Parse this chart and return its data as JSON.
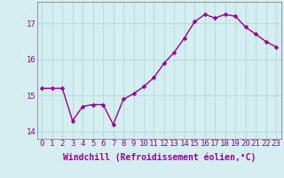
{
  "x": [
    0,
    1,
    2,
    3,
    4,
    5,
    6,
    7,
    8,
    9,
    10,
    11,
    12,
    13,
    14,
    15,
    16,
    17,
    18,
    19,
    20,
    21,
    22,
    23
  ],
  "y": [
    15.2,
    15.2,
    15.2,
    14.3,
    14.7,
    14.75,
    14.75,
    14.2,
    14.9,
    15.05,
    15.25,
    15.5,
    15.9,
    16.2,
    16.6,
    17.05,
    17.25,
    17.15,
    17.25,
    17.2,
    16.9,
    16.7,
    16.5,
    16.35
  ],
  "line_color": "#990099",
  "marker": "D",
  "marker_size": 2.5,
  "linewidth": 1.0,
  "xlabel": "Windchill (Refroidissement éolien,°C)",
  "xlabel_fontsize": 7,
  "ylim": [
    13.8,
    17.6
  ],
  "xlim": [
    -0.5,
    23.5
  ],
  "yticks": [
    14,
    15,
    16,
    17
  ],
  "xtick_labels": [
    "0",
    "1",
    "2",
    "3",
    "4",
    "5",
    "6",
    "7",
    "8",
    "9",
    "10",
    "11",
    "12",
    "13",
    "14",
    "15",
    "16",
    "17",
    "18",
    "19",
    "20",
    "21",
    "22",
    "23"
  ],
  "background_color": "#d5eef0",
  "grid_color": "#b8dde0",
  "tick_fontsize": 6.5,
  "label_color": "#990099"
}
